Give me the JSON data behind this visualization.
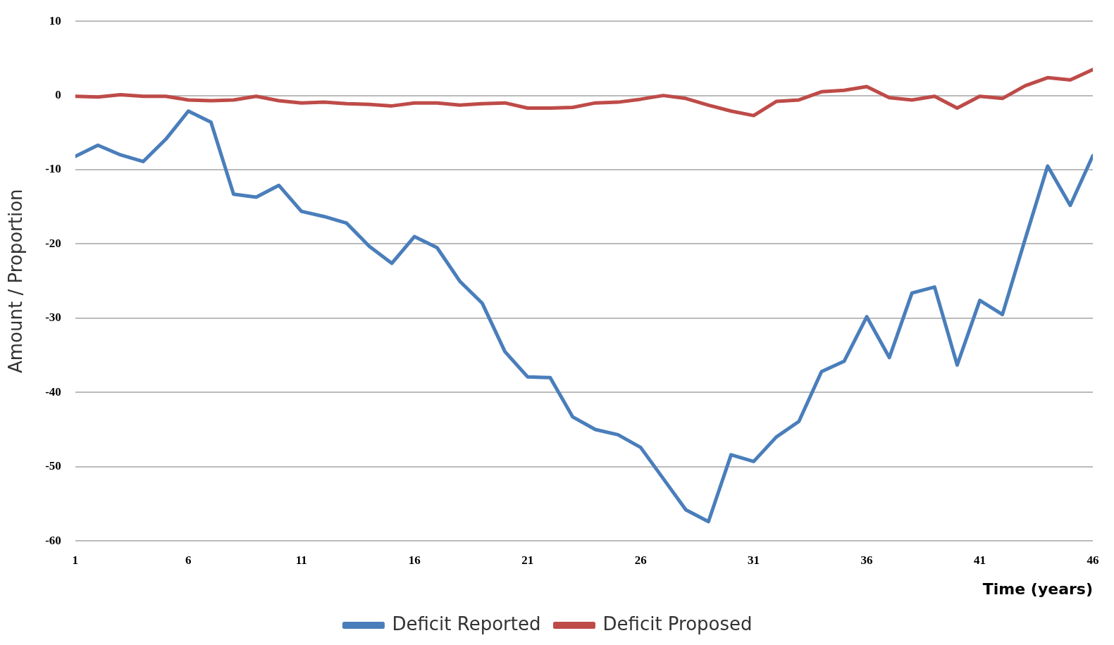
{
  "chart_data": {
    "type": "line",
    "xlabel": "Time (years)",
    "ylabel": "Amount / Proportion",
    "x": [
      1,
      2,
      3,
      4,
      5,
      6,
      7,
      8,
      9,
      10,
      11,
      12,
      13,
      14,
      15,
      16,
      17,
      18,
      19,
      20,
      21,
      22,
      23,
      24,
      25,
      26,
      27,
      28,
      29,
      30,
      31,
      32,
      33,
      34,
      35,
      36,
      37,
      38,
      39,
      40,
      41,
      42,
      43,
      44,
      45,
      46
    ],
    "xlim": [
      1,
      46
    ],
    "xticks": [
      1,
      6,
      11,
      16,
      21,
      26,
      31,
      36,
      41,
      46
    ],
    "ylim": [
      -60,
      10
    ],
    "yticks": [
      -60,
      -50,
      -40,
      -30,
      -20,
      -10,
      0,
      10
    ],
    "grid": "y",
    "legend": "bottom",
    "marker": "none",
    "line_style": "solid",
    "series": [
      {
        "name": "Deficit Reported",
        "color": "#4a7ebb",
        "values": [
          -8.2,
          -6.7,
          -8.0,
          -8.9,
          -5.9,
          -2.1,
          -3.6,
          -13.3,
          -13.7,
          -12.1,
          -15.6,
          -16.3,
          -17.2,
          -20.3,
          -22.6,
          -19.0,
          -20.5,
          -25.0,
          -28.0,
          -34.5,
          -37.9,
          -38.0,
          -43.3,
          -45.0,
          -45.7,
          -47.4,
          -51.6,
          -55.8,
          -57.4,
          -48.4,
          -49.3,
          -46.0,
          -43.9,
          -37.2,
          -35.8,
          -29.8,
          -35.3,
          -26.6,
          -25.8,
          -36.3,
          -27.6,
          -29.5,
          -19.4,
          -9.5,
          -14.8,
          -8.1
        ]
      },
      {
        "name": "Deficit Proposed",
        "color": "#be4b48",
        "values": [
          -0.1,
          -0.2,
          0.1,
          -0.1,
          -0.1,
          -0.6,
          -0.7,
          -0.6,
          -0.1,
          -0.7,
          -1.0,
          -0.9,
          -1.1,
          -1.2,
          -1.4,
          -1.0,
          -1.0,
          -1.3,
          -1.1,
          -1.0,
          -1.7,
          -1.7,
          -1.6,
          -1.0,
          -0.9,
          -0.5,
          0,
          -0.4,
          -1.3,
          -2.1,
          -2.7,
          -0.8,
          -0.6,
          0.5,
          0.7,
          1.2,
          -0.3,
          -0.6,
          -0.1,
          -1.7,
          -0.1,
          -0.4,
          1.3,
          2.4,
          2.1,
          3.5
        ]
      }
    ]
  }
}
